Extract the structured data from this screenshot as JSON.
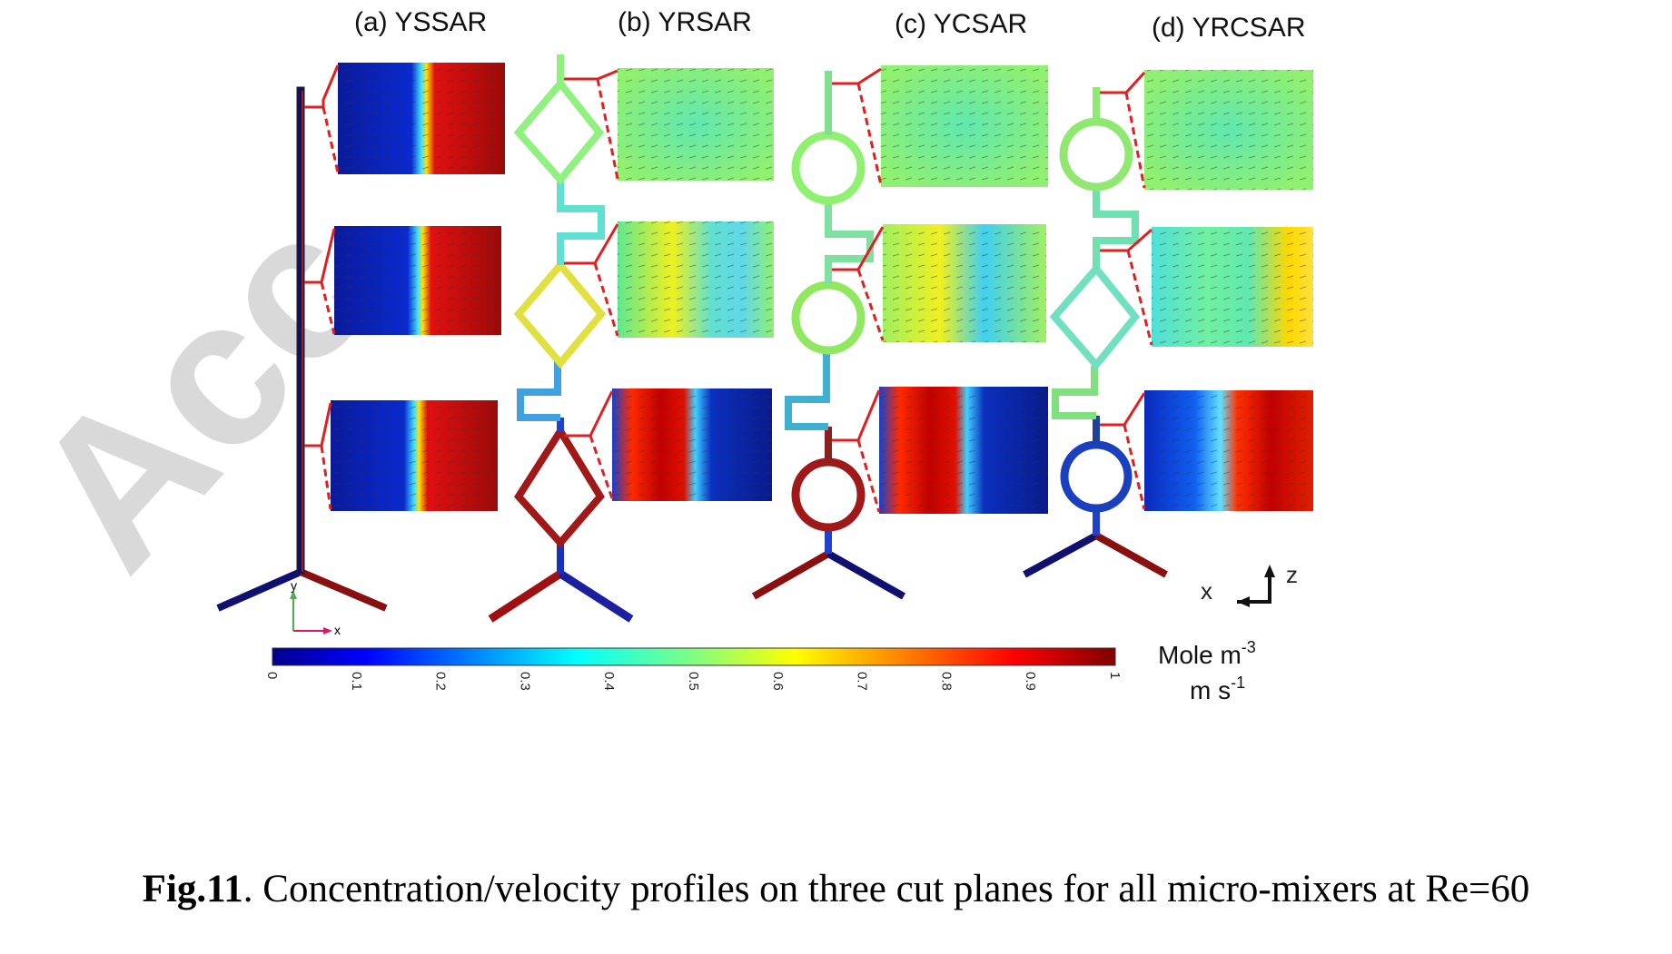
{
  "watermark": "Acc",
  "panels": [
    {
      "label": "(a) YSSAR"
    },
    {
      "label": "(b) YRSAR"
    },
    {
      "label": "(c) YCSAR"
    },
    {
      "label": "(d) YRCSAR"
    }
  ],
  "axes_small": {
    "y": "y",
    "x": "x"
  },
  "orientation": {
    "x": "x",
    "z": "z"
  },
  "colorbar": {
    "min": 0,
    "max": 1,
    "ticks": [
      "0",
      "0.1",
      "0.2",
      "0.3",
      "0.4",
      "0.5",
      "0.6",
      "0.7",
      "0.8",
      "0.9",
      "1"
    ],
    "colormap": "jet",
    "unit_line1": "Mole m",
    "unit_line1_sup": "-3",
    "unit_line2": "m s",
    "unit_line2_sup": "-1"
  },
  "caption": {
    "bold": "Fig.11",
    "text": ". Concentration/velocity profiles on three cut planes for all micro-mixers at Re=60"
  },
  "colors": {
    "low": "#00008f",
    "high": "#800000",
    "mid": "#80ff80",
    "connector": "#e02020"
  }
}
